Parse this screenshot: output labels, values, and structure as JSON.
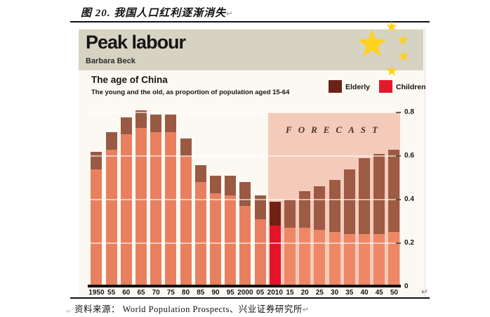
{
  "page": {
    "doc_title": "图 20. 我国人口红利逐渐消失",
    "return_mark": "↵",
    "source_line": "资料来源： World Population Prospects、兴业证券研究所",
    "stray_mark": "↵"
  },
  "figure": {
    "header": {
      "title": "Peak labour",
      "author": "Barbara Beck",
      "band_color": "#d6d3c3",
      "star_color": "#ffd21e"
    },
    "chart_header": {
      "title": "The age of China",
      "subtitle": "The young and the old, as proportion of population aged 15-64"
    },
    "legend": [
      {
        "label": "Elderly",
        "color": "#6b2318"
      },
      {
        "label": "Children",
        "color": "#e2182c"
      }
    ],
    "forecast_label": "FORECAST"
  },
  "chart_data": {
    "type": "bar",
    "stacked": true,
    "title": "The age of China",
    "subtitle": "The young and the old, as proportion of population aged 15-64",
    "categories": [
      "1950",
      "55",
      "60",
      "65",
      "70",
      "75",
      "80",
      "85",
      "90",
      "95",
      "2000",
      "05",
      "2010",
      "15",
      "20",
      "25",
      "30",
      "35",
      "40",
      "45",
      "50"
    ],
    "series": [
      {
        "name": "Children",
        "values": [
          0.54,
          0.63,
          0.7,
          0.73,
          0.71,
          0.71,
          0.6,
          0.48,
          0.43,
          0.42,
          0.37,
          0.31,
          0.28,
          0.27,
          0.27,
          0.26,
          0.25,
          0.24,
          0.24,
          0.24,
          0.25
        ]
      },
      {
        "name": "Elderly",
        "values": [
          0.08,
          0.08,
          0.08,
          0.08,
          0.08,
          0.08,
          0.08,
          0.08,
          0.08,
          0.09,
          0.11,
          0.11,
          0.11,
          0.13,
          0.17,
          0.2,
          0.24,
          0.3,
          0.35,
          0.37,
          0.38
        ]
      }
    ],
    "ylim": [
      0,
      0.8
    ],
    "yticks": [
      0,
      0.2,
      0.4,
      0.6,
      0.8
    ],
    "grid": "horizontal-white",
    "legend_position": "top-right",
    "forecast_from_index": 12,
    "forecast_bg": "#f4cabb",
    "colors": {
      "children_hist": "#e8805f",
      "elderly_hist": "#9a5943",
      "children_2010": "#e3142a",
      "elderly_2010": "#6f2317",
      "children_forecast": "#ee8765",
      "elderly_forecast": "#9d5b44"
    }
  }
}
